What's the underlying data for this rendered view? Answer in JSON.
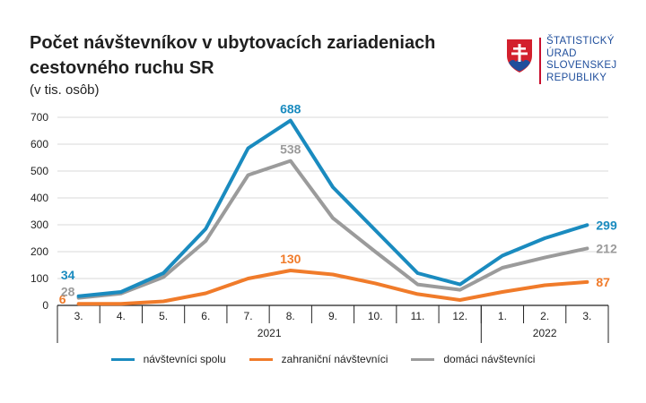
{
  "title": "Počet návštevníkov v ubytovacích zariadeniach cestovného ruchu SR",
  "subtitle": "(v tis. osôb)",
  "logo": {
    "lines": [
      "ŠTATISTICKÝ",
      "ÚRAD",
      "SLOVENSKEJ",
      "REPUBLIKY"
    ],
    "color": "#1f4e9c",
    "emblem": "slovak-coat-of-arms-icon"
  },
  "chart_data": {
    "type": "line",
    "categories": [
      "3.",
      "4.",
      "5.",
      "6.",
      "7.",
      "8.",
      "9.",
      "10.",
      "11.",
      "12.",
      "1.",
      "2.",
      "3."
    ],
    "groups": [
      {
        "label": "2021",
        "from": 0,
        "to": 9
      },
      {
        "label": "2022",
        "from": 10,
        "to": 12
      }
    ],
    "ylim": [
      0,
      700
    ],
    "yticks": [
      0,
      100,
      200,
      300,
      400,
      500,
      600,
      700
    ],
    "grid": true,
    "legend_position": "bottom",
    "series": [
      {
        "name": "návštevníci spolu",
        "color": "#1a8bbf",
        "values": [
          34,
          50,
          120,
          285,
          585,
          688,
          440,
          280,
          120,
          78,
          185,
          250,
          299
        ],
        "labels": [
          {
            "index": 0,
            "text": "34",
            "pos": "above"
          },
          {
            "index": 5,
            "text": "688",
            "pos": "above"
          },
          {
            "index": 12,
            "text": "299",
            "pos": "right"
          }
        ]
      },
      {
        "name": "zahraniční návštevníci",
        "color": "#f07b2a",
        "values": [
          6,
          6,
          15,
          45,
          100,
          130,
          115,
          82,
          42,
          20,
          50,
          75,
          87
        ],
        "labels": [
          {
            "index": 0,
            "text": "6",
            "pos": "below"
          },
          {
            "index": 5,
            "text": "130",
            "pos": "above"
          },
          {
            "index": 12,
            "text": "87",
            "pos": "right"
          }
        ]
      },
      {
        "name": "domáci návštevníci",
        "color": "#9b9b9b",
        "values": [
          28,
          44,
          105,
          240,
          485,
          538,
          325,
          200,
          78,
          58,
          140,
          178,
          212
        ],
        "labels": [
          {
            "index": 0,
            "text": "28",
            "pos": "above-below"
          },
          {
            "index": 5,
            "text": "538",
            "pos": "above"
          },
          {
            "index": 12,
            "text": "212",
            "pos": "right"
          }
        ]
      }
    ]
  }
}
